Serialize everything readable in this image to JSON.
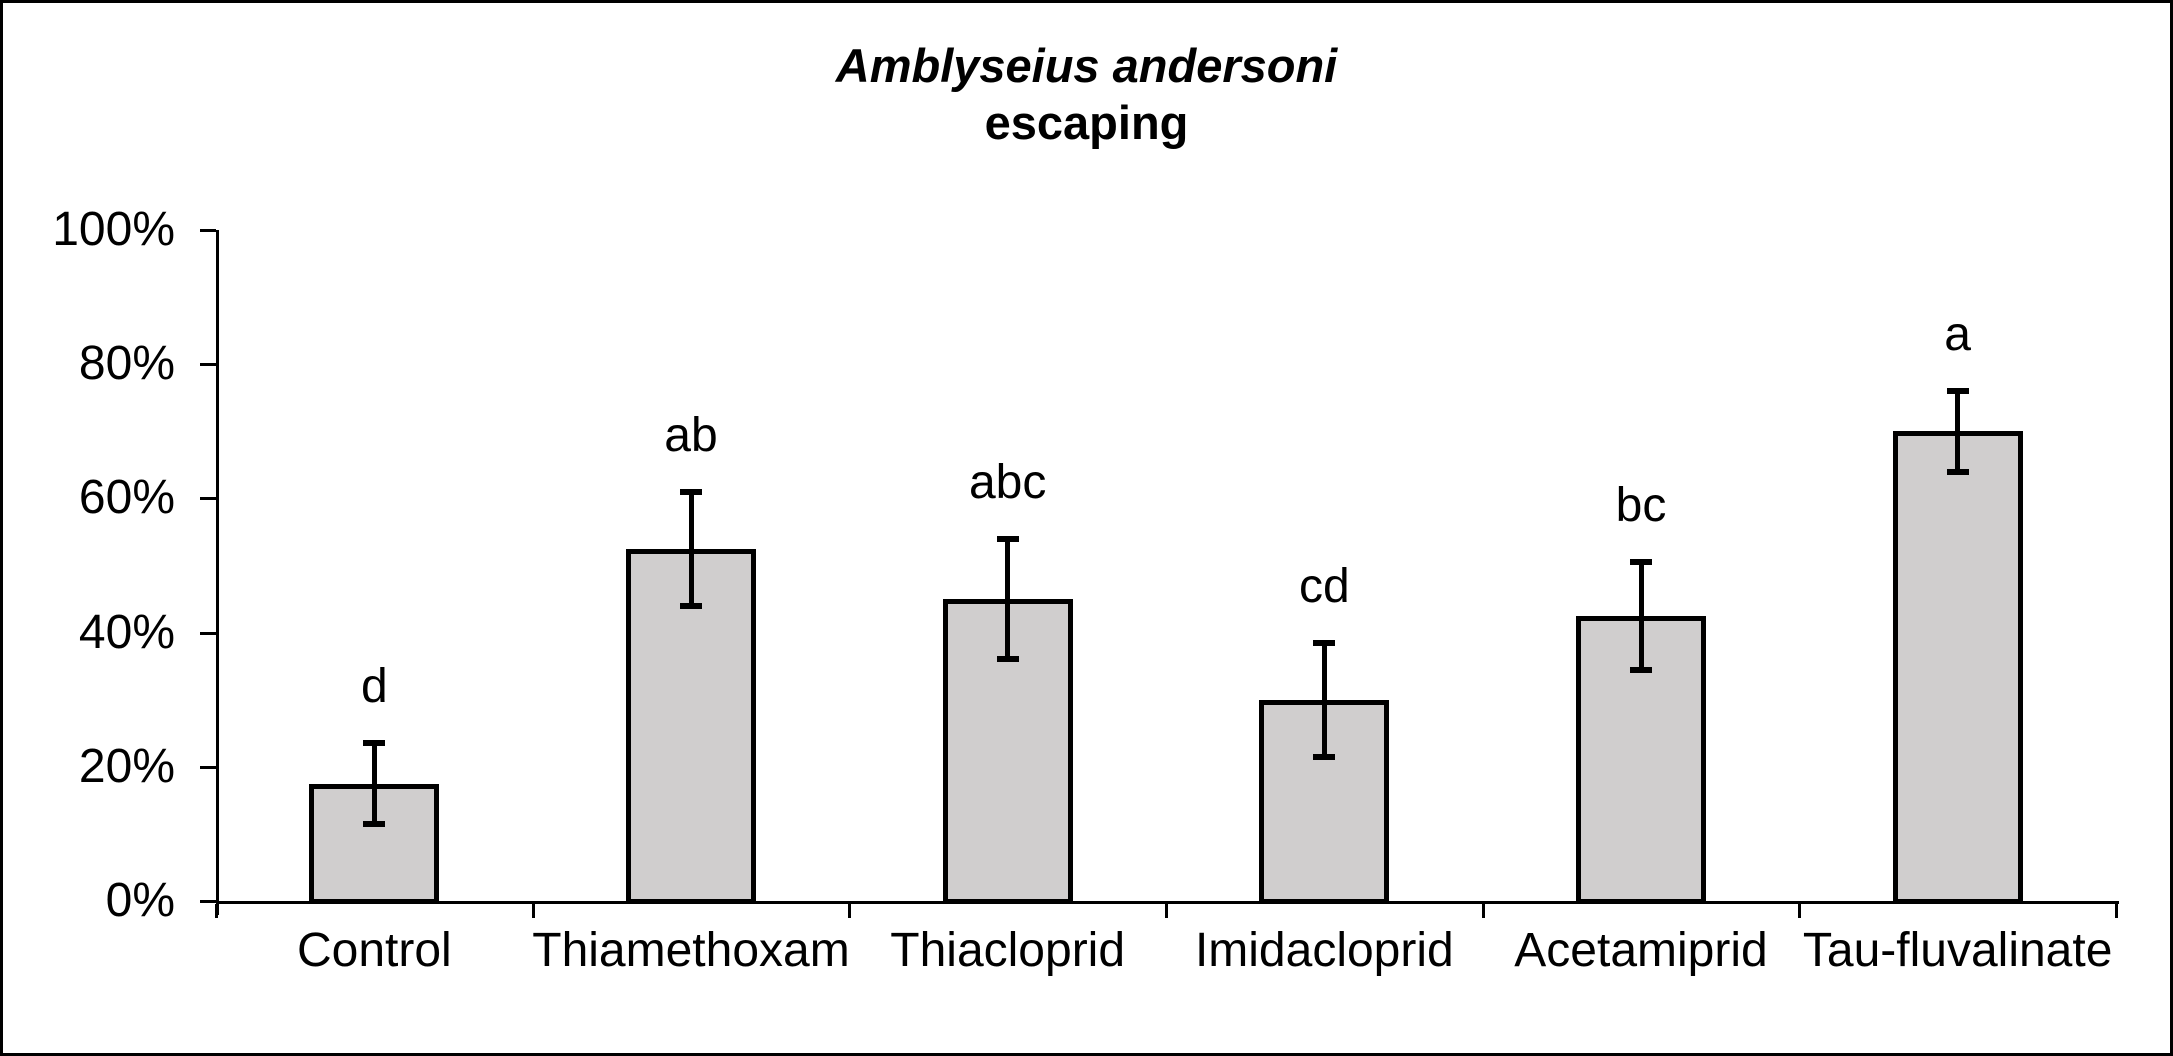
{
  "page": {
    "background": "#ffffff",
    "frame_color": "#000000"
  },
  "chart_data": {
    "type": "bar",
    "title_line1": "Amblyseius andersoni",
    "title_line2": "escaping",
    "categories": [
      "Control",
      "Thiamethoxam",
      "Thiacloprid",
      "Imidacloprid",
      "Acetamiprid",
      "Tau-fluvalinate"
    ],
    "values": [
      17.5,
      52.5,
      45,
      30,
      42.5,
      70
    ],
    "error_low": [
      11.5,
      44,
      36,
      21.5,
      34.5,
      64
    ],
    "error_high": [
      23.5,
      61,
      54,
      38.5,
      50.5,
      76
    ],
    "sig_letters": [
      "d",
      "ab",
      "abc",
      "cd",
      "bc",
      "a"
    ],
    "y_tick_labels": [
      "0%",
      "20%",
      "40%",
      "60%",
      "80%",
      "100%"
    ],
    "y_tick_values": [
      0,
      20,
      40,
      60,
      80,
      100
    ],
    "ylim": [
      0,
      100
    ],
    "xlabel": "",
    "ylabel": "",
    "grid": "off",
    "legend": "none",
    "bar_fill": "#d0cece",
    "axis_color": "#000000",
    "text_color": "#000000"
  }
}
